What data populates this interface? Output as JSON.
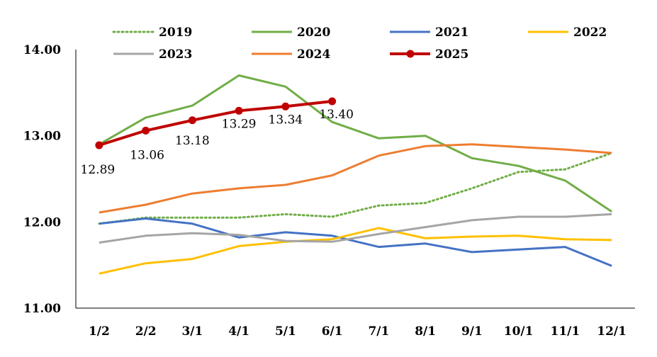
{
  "chart_data": {
    "type": "line",
    "title": "",
    "xlabel": "",
    "ylabel": "",
    "ylim": [
      11.0,
      14.0
    ],
    "yticks": [
      "11.00",
      "12.00",
      "13.00",
      "14.00"
    ],
    "grid": false,
    "legend_position": "top",
    "categories": [
      "1/2",
      "2/2",
      "3/1",
      "4/1",
      "5/1",
      "6/1",
      "7/1",
      "8/1",
      "9/1",
      "10/1",
      "11/1",
      "12/1"
    ],
    "series": [
      {
        "name": "2019",
        "color": "#70AD47",
        "style": "dotted",
        "values": [
          11.98,
          12.05,
          12.05,
          12.05,
          12.09,
          12.06,
          12.19,
          12.22,
          12.39,
          12.58,
          12.61,
          12.8
        ]
      },
      {
        "name": "2020",
        "color": "#70AD47",
        "style": "solid",
        "values": [
          12.9,
          13.21,
          13.35,
          13.7,
          13.57,
          13.16,
          12.97,
          13.0,
          12.74,
          12.65,
          12.48,
          12.12
        ]
      },
      {
        "name": "2021",
        "color": "#4472C4",
        "style": "solid",
        "values": [
          11.98,
          12.04,
          11.98,
          11.82,
          11.88,
          11.84,
          11.71,
          11.75,
          11.65,
          11.68,
          11.71,
          11.49
        ]
      },
      {
        "name": "2022",
        "color": "#FFC000",
        "style": "solid",
        "values": [
          11.4,
          11.52,
          11.57,
          11.72,
          11.77,
          11.8,
          11.93,
          11.81,
          11.83,
          11.84,
          11.8,
          11.79
        ]
      },
      {
        "name": "2023",
        "color": "#A5A5A5",
        "style": "solid",
        "values": [
          11.76,
          11.84,
          11.87,
          11.85,
          11.78,
          11.77,
          11.86,
          11.94,
          12.02,
          12.06,
          12.06,
          12.09
        ]
      },
      {
        "name": "2024",
        "color": "#ED7D31",
        "style": "solid",
        "values": [
          12.11,
          12.2,
          12.33,
          12.39,
          12.43,
          12.54,
          12.77,
          12.88,
          12.9,
          12.87,
          12.84,
          12.8
        ]
      },
      {
        "name": "2025",
        "color": "#C00000",
        "style": "solid-markers",
        "values": [
          12.89,
          13.06,
          13.18,
          13.29,
          13.34,
          13.4
        ],
        "data_labels": [
          "12.89",
          "13.06",
          "13.18",
          "13.29",
          "13.34",
          "13.40"
        ]
      }
    ]
  }
}
